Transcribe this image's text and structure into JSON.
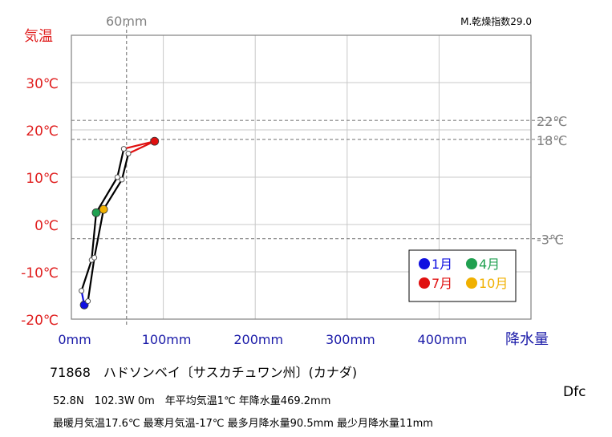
{
  "chart_data": {
    "type": "line",
    "index_label": "M.乾燥指数29.0",
    "y_title": "気温",
    "x_title": "降水量",
    "colors": {
      "temp_axis": "#e02020",
      "precip_axis": "#1a1aa8",
      "ref": "#808080"
    },
    "xlim": [
      0,
      490
    ],
    "ylim": [
      -20,
      40
    ],
    "x_ticks": [
      {
        "value": 0,
        "label": "0mm"
      },
      {
        "value": 100,
        "label": "100mm"
      },
      {
        "value": 200,
        "label": "200mm"
      },
      {
        "value": 300,
        "label": "300mm"
      },
      {
        "value": 400,
        "label": "400mm"
      }
    ],
    "y_ticks": [
      {
        "value": 30,
        "label": "30℃"
      },
      {
        "value": 20,
        "label": "20℃"
      },
      {
        "value": 10,
        "label": "10℃"
      },
      {
        "value": 0,
        "label": "0℃"
      },
      {
        "value": -10,
        "label": "-10℃"
      },
      {
        "value": -20,
        "label": "-20℃"
      }
    ],
    "ref_vertical": {
      "value": 60,
      "label": "60mm"
    },
    "ref_horizontal": [
      {
        "value": 22,
        "label": "22℃"
      },
      {
        "value": 18,
        "label": "18℃"
      },
      {
        "value": -3,
        "label": "-3℃"
      }
    ],
    "months": [
      {
        "m": 1,
        "precip": 14,
        "temp": -17.0
      },
      {
        "m": 2,
        "precip": 11,
        "temp": -14.0
      },
      {
        "m": 3,
        "precip": 22,
        "temp": -7.5
      },
      {
        "m": 4,
        "precip": 27,
        "temp": 2.5
      },
      {
        "m": 5,
        "precip": 50,
        "temp": 10.0
      },
      {
        "m": 6,
        "precip": 57,
        "temp": 16.0
      },
      {
        "m": 7,
        "precip": 90.5,
        "temp": 17.6
      },
      {
        "m": 8,
        "precip": 62,
        "temp": 15.0
      },
      {
        "m": 9,
        "precip": 55,
        "temp": 9.5
      },
      {
        "m": 10,
        "precip": 35,
        "temp": 3.2
      },
      {
        "m": 11,
        "precip": 25,
        "temp": -7.0
      },
      {
        "m": 12,
        "precip": 18,
        "temp": -16.2
      }
    ],
    "legend": [
      {
        "label": "1月",
        "color": "#1010e0",
        "month": 1
      },
      {
        "label": "4月",
        "color": "#20a050",
        "month": 4
      },
      {
        "label": "7月",
        "color": "#e01010",
        "month": 7
      },
      {
        "label": "10月",
        "color": "#f0b000",
        "month": 10
      }
    ]
  },
  "station": "71868　ハドソンベイ〔サスカチュワン州〕(カナダ)",
  "info_line1": "52.8N　102.3W 0m　年平均気温1℃ 年降水量469.2mm",
  "info_line2": "最暖月気温17.6℃ 最寒月気温-17℃ 最多月降水量90.5mm 最少月降水量11mm",
  "climate_type": "Dfc"
}
